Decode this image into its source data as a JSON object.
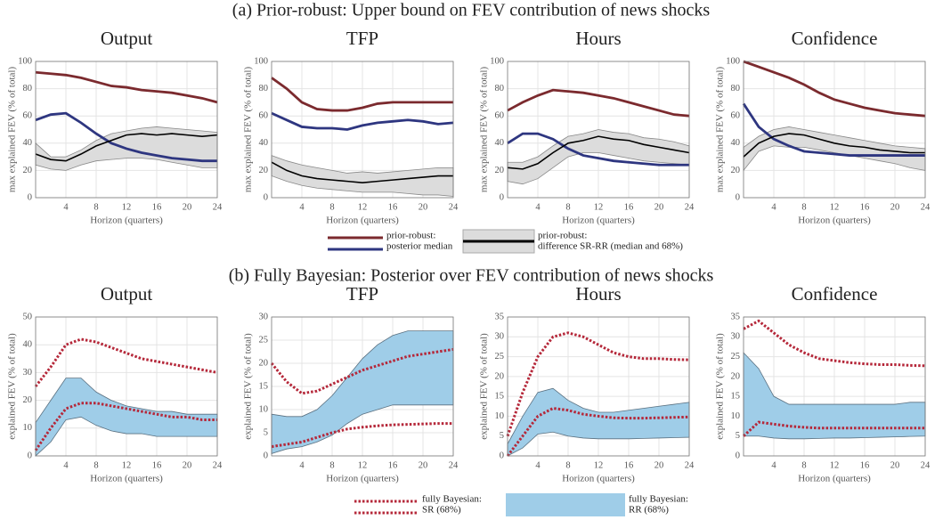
{
  "sections": [
    {
      "title": "(a) Prior-robust: Upper bound on FEV contribution of news shocks",
      "legend": [
        {
          "label": [
            "prior-robust:",
            "posterior median"
          ],
          "marks": [
            {
              "kind": "line",
              "color": "#7b2a2e"
            },
            {
              "kind": "line",
              "color": "#2e3680"
            }
          ]
        },
        {
          "label": [
            "prior-robust:",
            "difference SR-RR (median and 68%)"
          ],
          "marks": [
            {
              "kind": "band",
              "color": "#dcdcdc"
            },
            {
              "kind": "line",
              "color": "#000000"
            }
          ]
        }
      ]
    },
    {
      "title": "(b) Fully Bayesian: Posterior over FEV contribution of news shocks",
      "legend": [
        {
          "label": [
            "fully Bayesian:",
            "SR (68%)"
          ],
          "marks": [
            {
              "kind": "dotted",
              "color": "#b5283a"
            },
            {
              "kind": "dotted",
              "color": "#b5283a"
            }
          ]
        },
        {
          "label": [
            "fully Bayesian:",
            "RR (68%)"
          ],
          "marks": [
            {
              "kind": "band",
              "color": "#9fcde8"
            }
          ]
        }
      ]
    }
  ],
  "chart_data": [
    {
      "type": "line",
      "title": "Output",
      "xlabel": "Horizon (quarters)",
      "ylabel": "max explained FEV (% of total)",
      "x": [
        0,
        2,
        4,
        6,
        8,
        10,
        12,
        14,
        16,
        18,
        20,
        22,
        24
      ],
      "xlim": [
        0,
        24
      ],
      "xticks": [
        4,
        8,
        12,
        16,
        20,
        24
      ],
      "ylim": [
        0,
        100
      ],
      "yticks": [
        0,
        20,
        40,
        60,
        80,
        100
      ],
      "grid": true,
      "band": {
        "color": "#dcdcdc",
        "low": [
          24,
          21,
          20,
          24,
          27,
          28,
          29,
          29,
          28,
          26,
          24,
          22,
          22
        ],
        "high": [
          40,
          30,
          30,
          35,
          42,
          47,
          49,
          51,
          52,
          51,
          50,
          49,
          48
        ]
      },
      "series": [
        {
          "color": "#7b2a2e",
          "values": [
            92,
            91,
            90,
            88,
            85,
            82,
            81,
            79,
            78,
            77,
            75,
            73,
            70
          ]
        },
        {
          "color": "#2e3680",
          "values": [
            57,
            61,
            62,
            55,
            47,
            40,
            36,
            33,
            31,
            29,
            28,
            27,
            27
          ]
        },
        {
          "color": "#000000",
          "values": [
            32,
            28,
            27,
            32,
            38,
            42,
            46,
            47,
            46,
            47,
            46,
            45,
            46
          ]
        }
      ]
    },
    {
      "type": "line",
      "title": "TFP",
      "xlabel": "Horizon (quarters)",
      "ylabel": "max explained FEV (% of total)",
      "x": [
        0,
        2,
        4,
        6,
        8,
        10,
        12,
        14,
        16,
        18,
        20,
        22,
        24
      ],
      "xlim": [
        0,
        24
      ],
      "xticks": [
        4,
        8,
        12,
        16,
        20,
        24
      ],
      "ylim": [
        0,
        100
      ],
      "yticks": [
        0,
        20,
        40,
        60,
        80,
        100
      ],
      "grid": true,
      "band": {
        "color": "#dcdcdc",
        "low": [
          16,
          12,
          9,
          7,
          6,
          5,
          4,
          4,
          4,
          3,
          2,
          2,
          1
        ],
        "high": [
          31,
          27,
          24,
          22,
          20,
          18,
          19,
          18,
          19,
          20,
          21,
          22,
          22
        ]
      },
      "series": [
        {
          "color": "#7b2a2e",
          "values": [
            88,
            80,
            70,
            65,
            64,
            64,
            66,
            69,
            70,
            70,
            70,
            70,
            70
          ]
        },
        {
          "color": "#2e3680",
          "values": [
            62,
            57,
            52,
            51,
            51,
            50,
            53,
            55,
            56,
            57,
            56,
            54,
            55
          ]
        },
        {
          "color": "#000000",
          "values": [
            26,
            20,
            16,
            14,
            13,
            12,
            11,
            12,
            13,
            14,
            15,
            16,
            16
          ]
        }
      ]
    },
    {
      "type": "line",
      "title": "Hours",
      "xlabel": "Horizon (quarters)",
      "ylabel": "max explained FEV (% of total)",
      "x": [
        0,
        2,
        4,
        6,
        8,
        10,
        12,
        14,
        16,
        18,
        20,
        22,
        24
      ],
      "xlim": [
        0,
        24
      ],
      "xticks": [
        4,
        8,
        12,
        16,
        20,
        24
      ],
      "ylim": [
        0,
        100
      ],
      "yticks": [
        0,
        20,
        40,
        60,
        80,
        100
      ],
      "grid": true,
      "band": {
        "color": "#dcdcdc",
        "low": [
          12,
          10,
          14,
          22,
          30,
          33,
          33,
          31,
          29,
          27,
          26,
          25,
          24
        ],
        "high": [
          26,
          26,
          30,
          38,
          45,
          47,
          50,
          48,
          47,
          44,
          43,
          41,
          38
        ]
      },
      "series": [
        {
          "color": "#7b2a2e",
          "values": [
            64,
            70,
            75,
            79,
            78,
            77,
            75,
            73,
            70,
            67,
            64,
            61,
            60
          ]
        },
        {
          "color": "#2e3680",
          "values": [
            40,
            47,
            47,
            43,
            36,
            31,
            29,
            27,
            26,
            25,
            24,
            24,
            24
          ]
        },
        {
          "color": "#000000",
          "values": [
            22,
            21,
            25,
            33,
            40,
            42,
            45,
            43,
            42,
            39,
            37,
            35,
            33
          ]
        }
      ]
    },
    {
      "type": "line",
      "title": "Confidence",
      "xlabel": "Horizon (quarters)",
      "ylabel": "max explained FEV (% of total)",
      "x": [
        0,
        2,
        4,
        6,
        8,
        10,
        12,
        14,
        16,
        18,
        20,
        22,
        24
      ],
      "xlim": [
        0,
        24
      ],
      "xticks": [
        4,
        8,
        12,
        16,
        20,
        24
      ],
      "ylim": [
        0,
        100
      ],
      "yticks": [
        0,
        20,
        40,
        60,
        80,
        100
      ],
      "grid": true,
      "band": {
        "color": "#dcdcdc",
        "low": [
          20,
          34,
          38,
          37,
          37,
          35,
          33,
          31,
          29,
          27,
          25,
          22,
          20
        ],
        "high": [
          37,
          45,
          50,
          52,
          50,
          48,
          46,
          44,
          42,
          40,
          38,
          37,
          36
        ]
      },
      "series": [
        {
          "color": "#7b2a2e",
          "values": [
            100,
            96,
            92,
            88,
            83,
            77,
            72,
            69,
            66,
            64,
            62,
            61,
            60
          ]
        },
        {
          "color": "#2e3680",
          "values": [
            69,
            52,
            43,
            38,
            34,
            33,
            32,
            31,
            31,
            31,
            31,
            31,
            31
          ]
        },
        {
          "color": "#000000",
          "values": [
            30,
            40,
            45,
            47,
            46,
            43,
            40,
            38,
            37,
            35,
            34,
            33,
            33
          ]
        }
      ]
    },
    {
      "type": "line",
      "title": "Output",
      "xlabel": "Horizon (quarters)",
      "ylabel": "explained FEV (% of total)",
      "x": [
        0,
        2,
        4,
        6,
        8,
        10,
        12,
        14,
        16,
        18,
        20,
        22,
        24
      ],
      "xlim": [
        0,
        24
      ],
      "xticks": [
        4,
        8,
        12,
        16,
        20,
        24
      ],
      "ylim": [
        0,
        50
      ],
      "yticks": [
        0,
        10,
        20,
        30,
        40,
        50
      ],
      "grid": true,
      "band": {
        "color": "#9fcde8",
        "low": [
          0,
          5,
          13,
          14,
          11,
          9,
          8,
          8,
          7,
          7,
          7,
          7,
          7
        ],
        "high": [
          12,
          20,
          28,
          28,
          23,
          20,
          18,
          17,
          16,
          16,
          15,
          15,
          15
        ]
      },
      "series": [
        {
          "color": "#b5283a",
          "dotted": true,
          "values": [
            25,
            32,
            40,
            42,
            41,
            39,
            37,
            35,
            34,
            33,
            32,
            31,
            30
          ]
        },
        {
          "color": "#b5283a",
          "dotted": true,
          "values": [
            2,
            10,
            17,
            19,
            19,
            18,
            17,
            16,
            15,
            14,
            14,
            13,
            13
          ]
        }
      ]
    },
    {
      "type": "line",
      "title": "TFP",
      "xlabel": "Horizon (quarters)",
      "ylabel": "explained FEV (% of total)",
      "x": [
        0,
        2,
        4,
        6,
        8,
        10,
        12,
        14,
        16,
        18,
        20,
        22,
        24
      ],
      "xlim": [
        0,
        24
      ],
      "xticks": [
        4,
        8,
        12,
        16,
        20,
        24
      ],
      "ylim": [
        0,
        30
      ],
      "yticks": [
        0,
        5,
        10,
        15,
        20,
        25,
        30
      ],
      "grid": true,
      "band": {
        "color": "#9fcde8",
        "low": [
          0.5,
          1.5,
          2,
          3,
          4.5,
          7,
          9,
          10,
          11,
          11,
          11,
          11,
          11
        ],
        "high": [
          9,
          8.5,
          8.5,
          10,
          13,
          17,
          21,
          24,
          26,
          27,
          27,
          27,
          27
        ]
      },
      "series": [
        {
          "color": "#b5283a",
          "dotted": true,
          "values": [
            20,
            16,
            13.5,
            14,
            15.5,
            17,
            18.5,
            19.5,
            20.5,
            21.5,
            22,
            22.5,
            23
          ]
        },
        {
          "color": "#b5283a",
          "dotted": true,
          "values": [
            2,
            2.5,
            3,
            4,
            5,
            5.8,
            6.2,
            6.5,
            6.7,
            6.8,
            6.9,
            7,
            7
          ]
        }
      ]
    },
    {
      "type": "line",
      "title": "Hours",
      "xlabel": "Horizon (quarters)",
      "ylabel": "explained FEV (% of total)",
      "x": [
        0,
        2,
        4,
        6,
        8,
        10,
        12,
        14,
        16,
        18,
        20,
        22,
        24
      ],
      "xlim": [
        0,
        24
      ],
      "xticks": [
        4,
        8,
        12,
        16,
        20,
        24
      ],
      "ylim": [
        0,
        35
      ],
      "yticks": [
        0,
        5,
        10,
        15,
        20,
        25,
        30,
        35
      ],
      "grid": true,
      "band": {
        "color": "#9fcde8",
        "low": [
          0,
          2,
          5.5,
          6,
          5,
          4.5,
          4.3,
          4.3,
          4.3,
          4.4,
          4.5,
          4.6,
          4.7
        ],
        "high": [
          3,
          10,
          16,
          17,
          14,
          12,
          11,
          11,
          11.5,
          12,
          12.5,
          13,
          13.5
        ]
      },
      "series": [
        {
          "color": "#b5283a",
          "dotted": true,
          "values": [
            5,
            16,
            25,
            30,
            31,
            30,
            28,
            26,
            25,
            24.5,
            24.5,
            24.3,
            24.2
          ]
        },
        {
          "color": "#b5283a",
          "dotted": true,
          "values": [
            0,
            5,
            10,
            12,
            11.5,
            10.5,
            10,
            9.6,
            9.5,
            9.5,
            9.6,
            9.7,
            9.8
          ]
        }
      ]
    },
    {
      "type": "line",
      "title": "Confidence",
      "xlabel": "Horizon (quarters)",
      "ylabel": "explained FEV (% of total)",
      "x": [
        0,
        2,
        4,
        6,
        8,
        10,
        12,
        14,
        16,
        18,
        20,
        22,
        24
      ],
      "xlim": [
        0,
        24
      ],
      "xticks": [
        4,
        8,
        12,
        16,
        20,
        24
      ],
      "ylim": [
        0,
        35
      ],
      "yticks": [
        0,
        5,
        10,
        15,
        20,
        25,
        30,
        35
      ],
      "grid": true,
      "band": {
        "color": "#9fcde8",
        "low": [
          5,
          5,
          4.5,
          4.3,
          4.3,
          4.4,
          4.5,
          4.5,
          4.6,
          4.7,
          4.8,
          4.9,
          5
        ],
        "high": [
          26,
          22,
          15,
          13,
          13,
          13,
          13,
          13,
          13,
          13,
          13,
          13.5,
          13.5
        ]
      },
      "series": [
        {
          "color": "#b5283a",
          "dotted": true,
          "values": [
            32,
            34,
            31,
            28,
            26,
            24.5,
            24,
            23.5,
            23.2,
            23,
            23,
            22.8,
            22.7
          ]
        },
        {
          "color": "#b5283a",
          "dotted": true,
          "values": [
            5,
            8.5,
            8,
            7.5,
            7.2,
            7,
            7,
            7,
            7,
            7,
            7,
            7,
            7
          ]
        }
      ]
    }
  ]
}
